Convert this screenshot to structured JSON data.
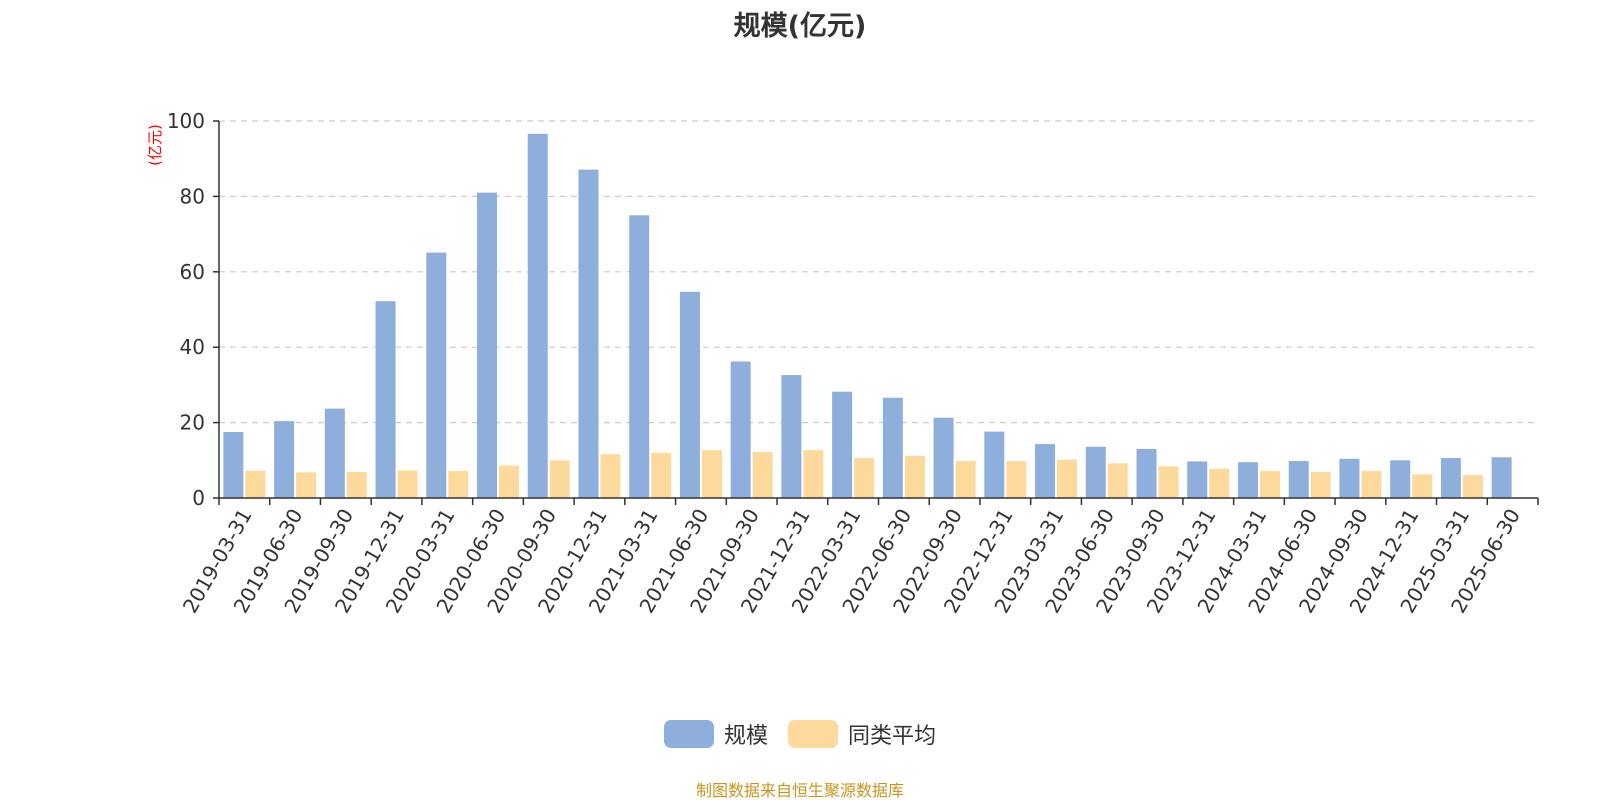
{
  "chart_data": {
    "type": "bar",
    "title": "规模(亿元)",
    "ylabel": "(亿元)",
    "xlabel": "",
    "ylim": [
      0,
      100
    ],
    "yticks": [
      0,
      20,
      40,
      60,
      80,
      100
    ],
    "grid": true,
    "legend_position": "bottom-center",
    "categories": [
      "2019-03-31",
      "2019-06-30",
      "2019-09-30",
      "2019-12-31",
      "2020-03-31",
      "2020-06-30",
      "2020-09-30",
      "2020-12-31",
      "2021-03-31",
      "2021-06-30",
      "2021-09-30",
      "2021-12-31",
      "2022-03-31",
      "2022-06-30",
      "2022-09-30",
      "2022-12-31",
      "2023-03-31",
      "2023-06-30",
      "2023-09-30",
      "2023-12-31",
      "2024-03-31",
      "2024-06-30",
      "2024-09-30",
      "2024-12-31",
      "2025-03-31",
      "2025-06-30"
    ],
    "series": [
      {
        "name": "规模",
        "color": "#8eaedb",
        "values": [
          17.5,
          20.4,
          23.7,
          52.2,
          65.1,
          81.0,
          96.6,
          87.1,
          75.0,
          54.7,
          36.2,
          32.6,
          28.2,
          26.6,
          21.3,
          17.6,
          14.3,
          13.6,
          13.0,
          9.7,
          9.5,
          9.8,
          10.4,
          10.0,
          10.6,
          10.8
        ]
      },
      {
        "name": "同类平均",
        "color": "#fdd99b",
        "values": [
          7.2,
          6.8,
          6.9,
          7.3,
          7.2,
          8.6,
          10.0,
          11.6,
          12.0,
          12.7,
          12.2,
          12.7,
          10.6,
          11.2,
          9.8,
          9.8,
          10.2,
          9.2,
          8.4,
          7.8,
          7.2,
          6.9,
          7.2,
          6.3,
          6.1,
          null
        ]
      }
    ]
  },
  "footer": {
    "source_note": "制图数据来自恒生聚源数据库"
  }
}
